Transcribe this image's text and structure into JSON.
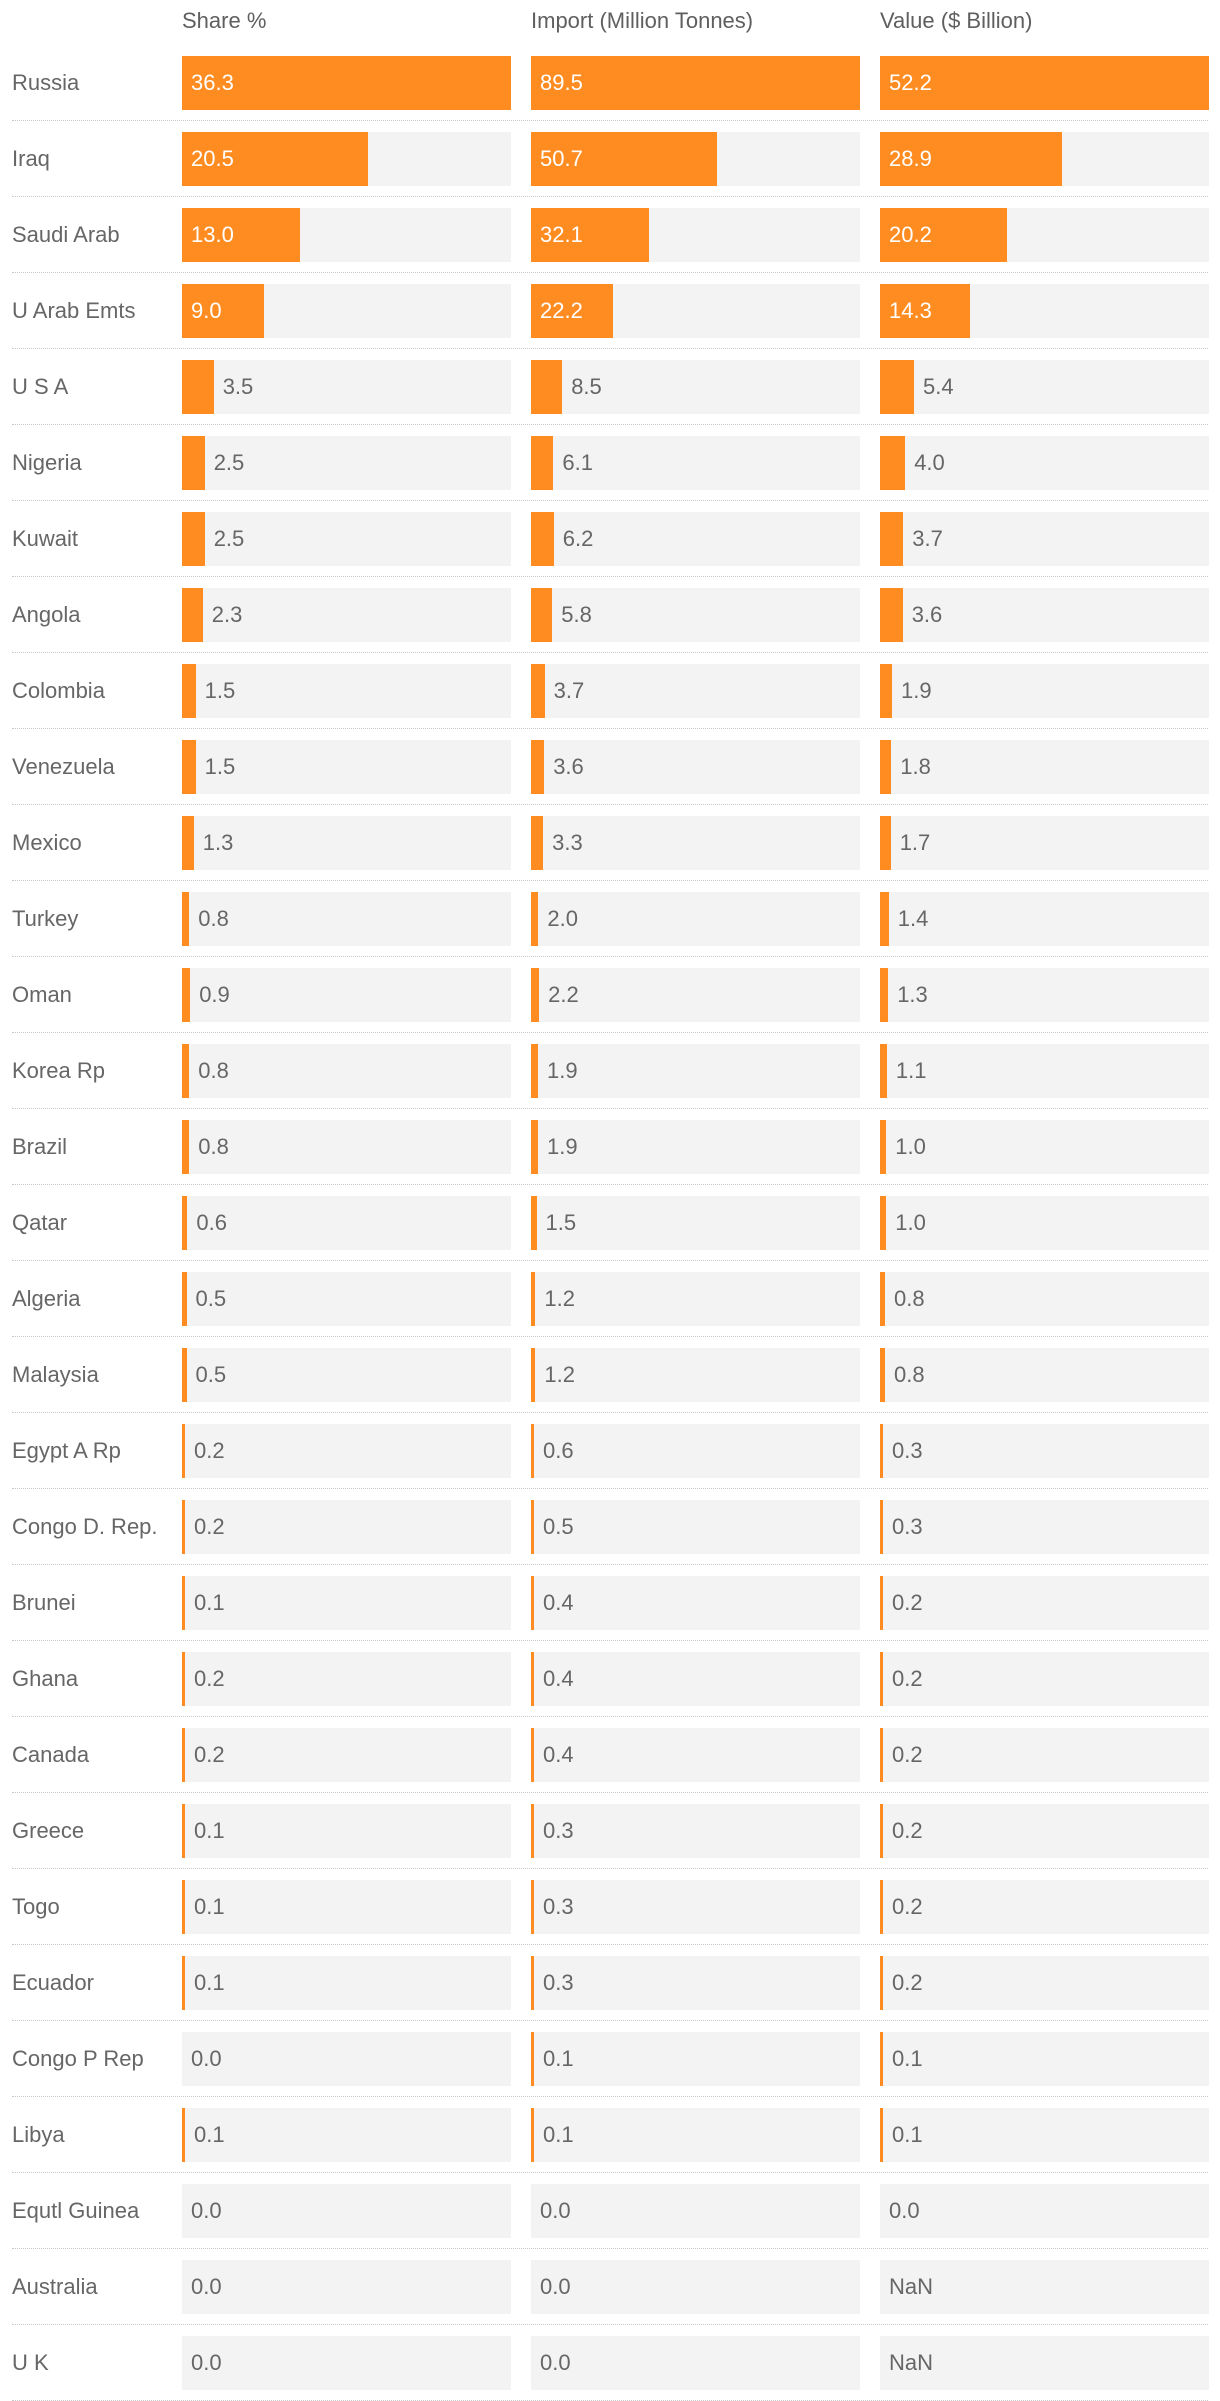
{
  "chart_data": {
    "type": "table",
    "title": "",
    "columns": [
      "Share %",
      "Import (Million Tonnes)",
      "Value ($ Billion)"
    ],
    "column_max": [
      36.3,
      89.5,
      52.2
    ],
    "bar_color": "#ff8c21",
    "cell_background": "#f3f3f3",
    "rows": [
      {
        "country": "Russia",
        "values": [
          "36.3",
          "89.5",
          "52.2"
        ]
      },
      {
        "country": "Iraq",
        "values": [
          "20.5",
          "50.7",
          "28.9"
        ]
      },
      {
        "country": "Saudi Arab",
        "values": [
          "13.0",
          "32.1",
          "20.2"
        ]
      },
      {
        "country": "U Arab Emts",
        "values": [
          "9.0",
          "22.2",
          "14.3"
        ]
      },
      {
        "country": "U S A",
        "values": [
          "3.5",
          "8.5",
          "5.4"
        ]
      },
      {
        "country": "Nigeria",
        "values": [
          "2.5",
          "6.1",
          "4.0"
        ]
      },
      {
        "country": "Kuwait",
        "values": [
          "2.5",
          "6.2",
          "3.7"
        ]
      },
      {
        "country": "Angola",
        "values": [
          "2.3",
          "5.8",
          "3.6"
        ]
      },
      {
        "country": "Colombia",
        "values": [
          "1.5",
          "3.7",
          "1.9"
        ]
      },
      {
        "country": "Venezuela",
        "values": [
          "1.5",
          "3.6",
          "1.8"
        ]
      },
      {
        "country": "Mexico",
        "values": [
          "1.3",
          "3.3",
          "1.7"
        ]
      },
      {
        "country": "Turkey",
        "values": [
          "0.8",
          "2.0",
          "1.4"
        ]
      },
      {
        "country": "Oman",
        "values": [
          "0.9",
          "2.2",
          "1.3"
        ]
      },
      {
        "country": "Korea Rp",
        "values": [
          "0.8",
          "1.9",
          "1.1"
        ]
      },
      {
        "country": "Brazil",
        "values": [
          "0.8",
          "1.9",
          "1.0"
        ]
      },
      {
        "country": "Qatar",
        "values": [
          "0.6",
          "1.5",
          "1.0"
        ]
      },
      {
        "country": "Algeria",
        "values": [
          "0.5",
          "1.2",
          "0.8"
        ]
      },
      {
        "country": "Malaysia",
        "values": [
          "0.5",
          "1.2",
          "0.8"
        ]
      },
      {
        "country": "Egypt A Rp",
        "values": [
          "0.2",
          "0.6",
          "0.3"
        ]
      },
      {
        "country": "Congo D. Rep.",
        "values": [
          "0.2",
          "0.5",
          "0.3"
        ]
      },
      {
        "country": "Brunei",
        "values": [
          "0.1",
          "0.4",
          "0.2"
        ]
      },
      {
        "country": "Ghana",
        "values": [
          "0.2",
          "0.4",
          "0.2"
        ]
      },
      {
        "country": "Canada",
        "values": [
          "0.2",
          "0.4",
          "0.2"
        ]
      },
      {
        "country": "Greece",
        "values": [
          "0.1",
          "0.3",
          "0.2"
        ]
      },
      {
        "country": "Togo",
        "values": [
          "0.1",
          "0.3",
          "0.2"
        ]
      },
      {
        "country": "Ecuador",
        "values": [
          "0.1",
          "0.3",
          "0.2"
        ]
      },
      {
        "country": "Congo P Rep",
        "values": [
          "0.0",
          "0.1",
          "0.1"
        ]
      },
      {
        "country": "Libya",
        "values": [
          "0.1",
          "0.1",
          "0.1"
        ]
      },
      {
        "country": "Equtl Guinea",
        "values": [
          "0.0",
          "0.0",
          "0.0"
        ]
      },
      {
        "country": "Australia",
        "values": [
          "0.0",
          "0.0",
          "NaN"
        ]
      },
      {
        "country": "U K",
        "values": [
          "0.0",
          "0.0",
          "NaN"
        ]
      }
    ]
  }
}
